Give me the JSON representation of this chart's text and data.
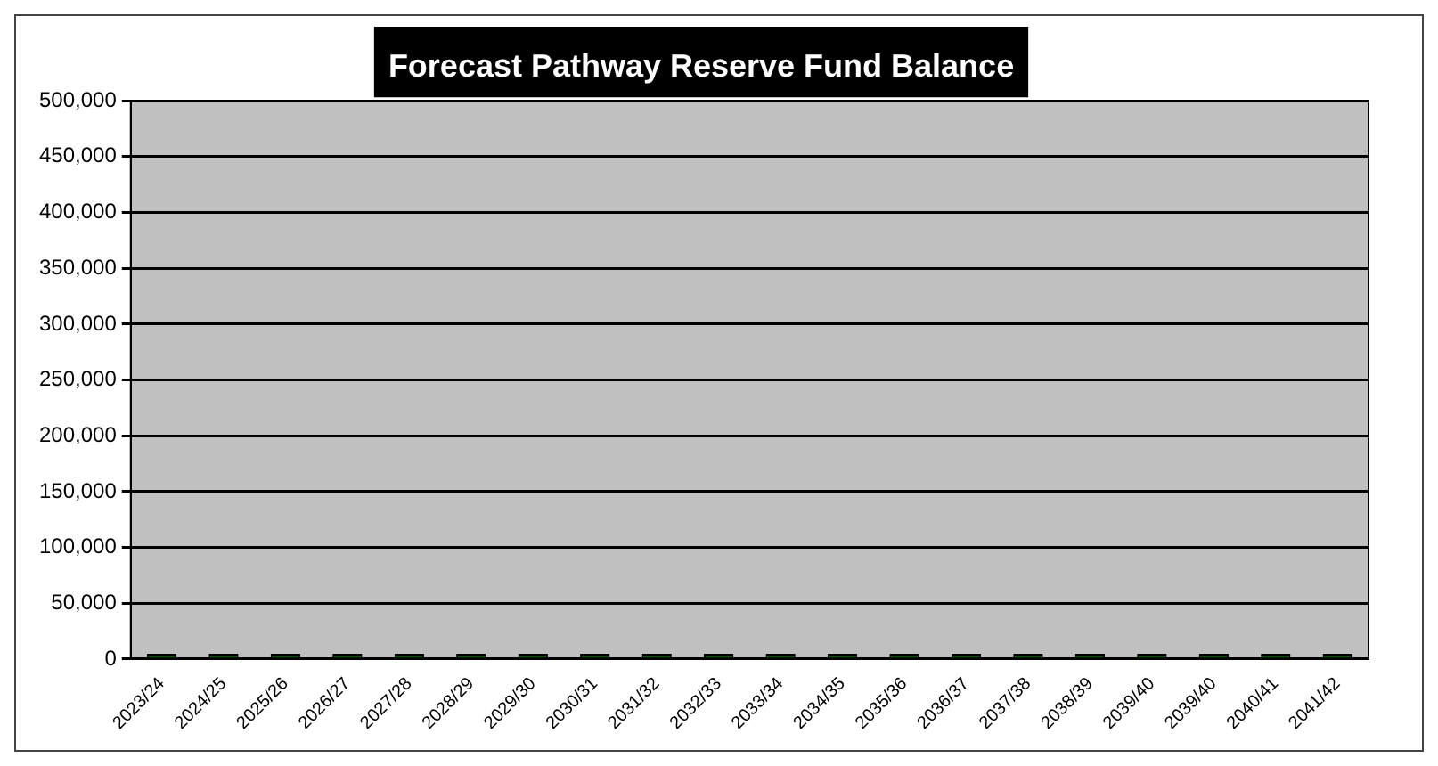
{
  "chart_data": {
    "type": "bar",
    "title": "Forecast Pathway Reserve Fund Balance",
    "categories": [
      "2023/24",
      "2024/25",
      "2025/26",
      "2026/27",
      "2027/28",
      "2028/29",
      "2029/30",
      "2030/31",
      "2031/32",
      "2032/33",
      "2033/34",
      "2034/35",
      "2035/36",
      "2036/37",
      "2037/38",
      "2038/39",
      "2039/40",
      "2039/40",
      "2040/41",
      "2041/42"
    ],
    "values": [
      0,
      0,
      0,
      0,
      0,
      0,
      0,
      0,
      0,
      0,
      0,
      0,
      0,
      0,
      0,
      0,
      0,
      0,
      0,
      0
    ],
    "color": "#0b4f0b",
    "ylim": [
      0,
      500000
    ],
    "yticks": [
      0,
      {
        "value": 50000,
        "label": "50,000"
      },
      {
        "value": 100000,
        "label": "100,000"
      },
      {
        "value": 150000,
        "label": "150,000"
      },
      {
        "value": 200000,
        "label": "200,000"
      },
      {
        "value": 250000,
        "label": "250,000"
      },
      {
        "value": 300000,
        "label": "300,000"
      },
      {
        "value": 350000,
        "label": "350,000"
      },
      {
        "value": 400000,
        "label": "400,000"
      },
      {
        "value": 450000,
        "label": "450,000"
      },
      {
        "value": 500000,
        "label": "500,000"
      }
    ],
    "grid": "y",
    "legend": false
  }
}
